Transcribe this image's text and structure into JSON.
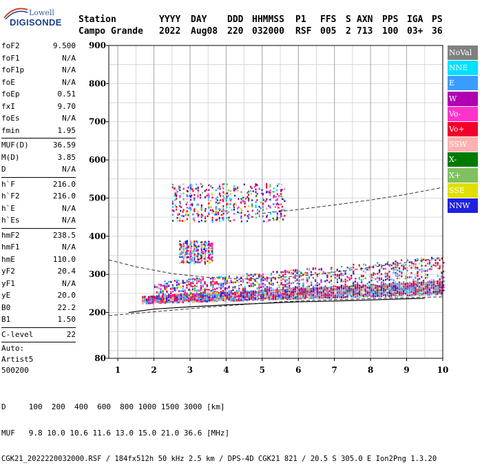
{
  "logo": {
    "line1": "Lowell",
    "line2": "DIGISONDE"
  },
  "header": {
    "labels": [
      "Station",
      "YYYY",
      "DAY",
      "DDD",
      "HHMMSS",
      "P1",
      "FFS",
      "S",
      "AXN",
      "PPS",
      "IGA",
      "PS"
    ],
    "values": [
      "Campo Grande",
      "2022",
      "Aug08",
      "220",
      "032000",
      "RSF",
      "005",
      "2",
      "713",
      "100",
      "03+",
      "36"
    ]
  },
  "params": {
    "group1": [
      {
        "name": "foF2",
        "value": "9.500"
      },
      {
        "name": "foF1",
        "value": "N/A"
      },
      {
        "name": "foF1p",
        "value": "N/A"
      },
      {
        "name": "foE",
        "value": "N/A"
      },
      {
        "name": "foEp",
        "value": "0.51"
      },
      {
        "name": "fxI",
        "value": "9.70"
      },
      {
        "name": "foEs",
        "value": "N/A"
      },
      {
        "name": "fmin",
        "value": "1.95"
      }
    ],
    "group2": [
      {
        "name": "MUF(D)",
        "value": "36.59"
      },
      {
        "name": "M(D)",
        "value": "3.85"
      },
      {
        "name": "D",
        "value": "N/A"
      }
    ],
    "group3": [
      {
        "name": "h`F",
        "value": "216.0"
      },
      {
        "name": "h`F2",
        "value": "216.0"
      },
      {
        "name": "h`E",
        "value": "N/A"
      },
      {
        "name": "h`Es",
        "value": "N/A"
      }
    ],
    "group4": [
      {
        "name": "hmF2",
        "value": "238.5"
      },
      {
        "name": "hmF1",
        "value": "N/A"
      },
      {
        "name": "hmE",
        "value": "110.0"
      },
      {
        "name": "yF2",
        "value": "20.4"
      },
      {
        "name": "yF1",
        "value": "N/A"
      },
      {
        "name": "yE",
        "value": "20.0"
      },
      {
        "name": "B0",
        "value": "22.2"
      },
      {
        "name": "B1",
        "value": "1.50"
      }
    ],
    "group5": [
      {
        "name": "C-level",
        "value": "22"
      }
    ],
    "auto": [
      "Auto:",
      "Artist5",
      "500200"
    ]
  },
  "legend": [
    {
      "label": "NoVal",
      "color": "#808080"
    },
    {
      "label": "NNE",
      "color": "#00e0ff"
    },
    {
      "label": "E",
      "color": "#3a9cff"
    },
    {
      "label": "W",
      "color": "#b000b0"
    },
    {
      "label": "Vo-",
      "color": "#ff33cc"
    },
    {
      "label": "Vo+",
      "color": "#f0002a"
    },
    {
      "label": "SSW",
      "color": "#ffb0b0"
    },
    {
      "label": "X-",
      "color": "#007a00"
    },
    {
      "label": "X+",
      "color": "#80c060"
    },
    {
      "label": "SSE",
      "color": "#e0e000"
    },
    {
      "label": "NNW",
      "color": "#2020e0"
    }
  ],
  "footer": {
    "line1": "D     100  200  400  600  800 1000 1500 3000 [km]",
    "line2": "MUF   9.8 10.0 10.6 11.6 13.0 15.0 21.0 36.6 [MHz]",
    "line3": "CGK21_2022220032000.RSF / 184fx512h 50 kHz 2.5 km / DPS-4D CGK21 821 / 20.5 S 305.0 E Ion2Png 1.3.20"
  },
  "chart_data": {
    "type": "scatter",
    "title": "",
    "xlabel": "",
    "ylabel": "",
    "xlim": [
      0.75,
      10
    ],
    "ylim": [
      80,
      900
    ],
    "xticks": [
      1,
      2,
      3,
      4,
      5,
      6,
      7,
      8,
      9,
      10
    ],
    "yticks": [
      80,
      200,
      300,
      400,
      500,
      600,
      700,
      800,
      900
    ],
    "grid": true,
    "legend_position": "right",
    "clusters": [
      {
        "series": "mixed",
        "x_range": [
          1.65,
          10
        ],
        "y_base_start": 232,
        "y_base_end": 262,
        "thickness": 30,
        "count": 3200
      },
      {
        "series": "mixed-upper",
        "x_range": [
          2.0,
          10
        ],
        "y_base_start": 255,
        "y_base_end": 295,
        "thickness": 70,
        "count": 1200
      },
      {
        "series": "mixed-F2",
        "x_range": [
          2.7,
          3.6
        ],
        "y_range": [
          330,
          390
        ],
        "count": 260
      },
      {
        "series": "mixed-2hop",
        "x_range": [
          2.5,
          5.6
        ],
        "y_range": [
          440,
          540
        ],
        "count": 520
      }
    ],
    "fitted_profile": {
      "x": [
        1.3,
        2.0,
        3.0,
        4.0,
        5.0,
        6.0,
        7.0,
        8.0,
        9.0,
        9.5
      ],
      "y": [
        200,
        209,
        215,
        220,
        224,
        228,
        230,
        233,
        236,
        237
      ]
    },
    "dashed_curves": [
      {
        "x": [
          0.75,
          1.5,
          2.5,
          3.5,
          4.5,
          5.5,
          6.5,
          7.5,
          8.5,
          9.5,
          10
        ],
        "y": [
          192,
          198,
          206,
          214,
          221,
          228,
          232,
          235,
          238,
          240,
          241
        ]
      },
      {
        "x": [
          0.75,
          1.5,
          2.5,
          3.5,
          4.5,
          5.5,
          6.5,
          7.5,
          8.5,
          9.5,
          10
        ],
        "y": [
          338,
          320,
          302,
          292,
          288,
          292,
          300,
          312,
          325,
          338,
          344
        ]
      },
      {
        "x": [
          5.0,
          6.0,
          7.0,
          8.0,
          9.0,
          10.0
        ],
        "y": [
          460,
          470,
          482,
          495,
          510,
          528
        ]
      }
    ]
  }
}
